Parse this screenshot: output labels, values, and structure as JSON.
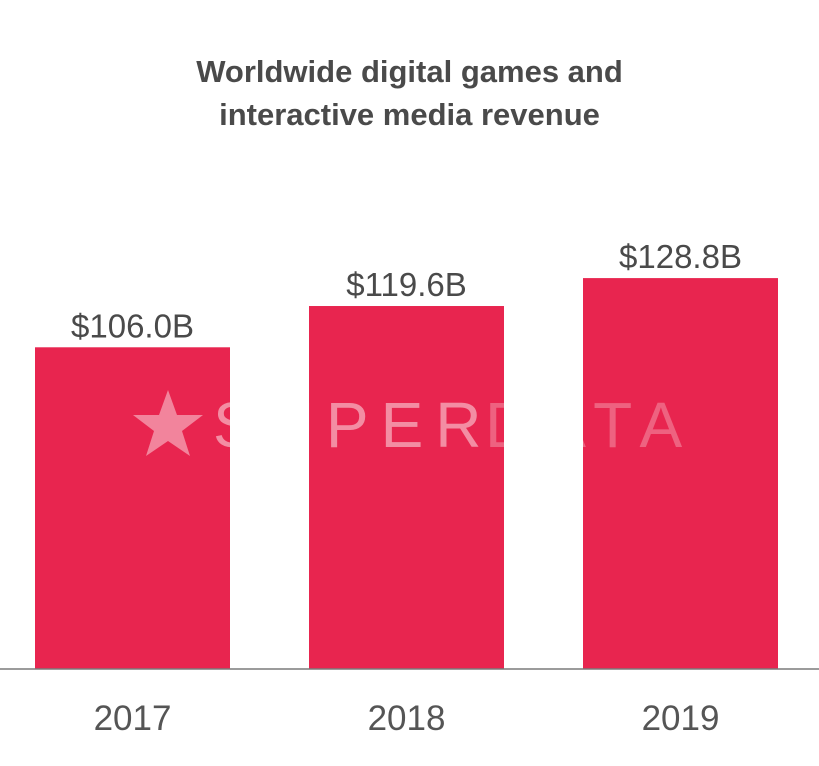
{
  "chart_data": {
    "type": "bar",
    "title_lines": [
      "Worldwide digital games and",
      "interactive media revenue"
    ],
    "categories": [
      "2017",
      "2018",
      "2019"
    ],
    "values": [
      106.0,
      119.6,
      128.8
    ],
    "value_labels": [
      "$106.0B",
      "$119.6B",
      "$128.8B"
    ],
    "xlabel": "",
    "ylabel": "",
    "unit": "$B",
    "ylim": [
      0,
      150
    ],
    "grid": false,
    "legend": "none",
    "bar_color": "#e8254f",
    "axis_color": "#7a7a7a"
  },
  "watermark": {
    "text_part1": "SUPER",
    "text_part2": "DATA",
    "icon": "star-icon"
  }
}
